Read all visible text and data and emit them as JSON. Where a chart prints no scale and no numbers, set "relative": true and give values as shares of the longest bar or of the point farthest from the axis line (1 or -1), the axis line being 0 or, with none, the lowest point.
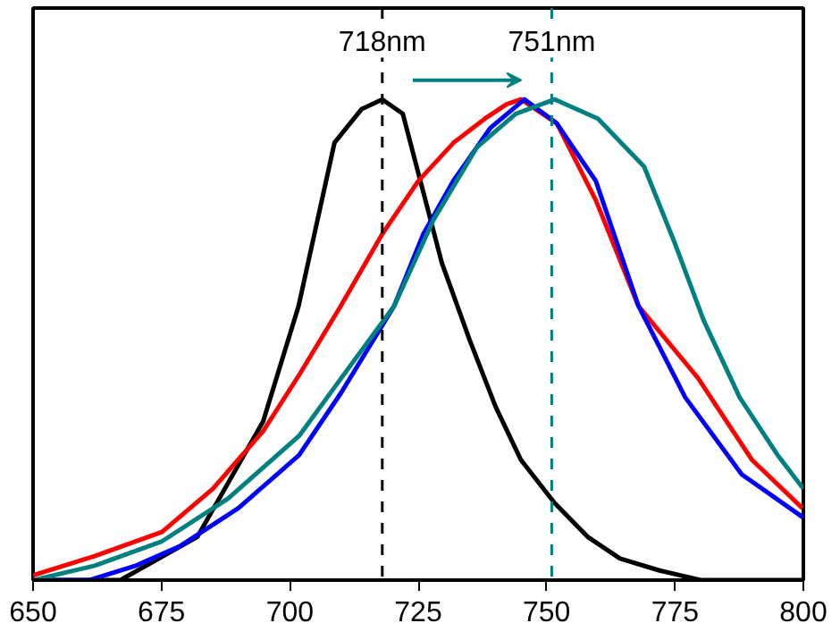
{
  "chart_data": {
    "type": "line",
    "relative": true,
    "xlim": [
      650,
      800
    ],
    "xticks": [
      650,
      675,
      700,
      725,
      750,
      775,
      800
    ],
    "grid": false,
    "marker": "none",
    "line_style": "solid",
    "series": [
      {
        "color": "#000000",
        "x": [
          650,
          667,
          682,
          694.8,
          701.7,
          708.7,
          714,
          718,
          722,
          729.6,
          735,
          740.1,
          745,
          751.6,
          758,
          764.3,
          772,
          780,
          790,
          800
        ],
        "values": [
          0,
          0,
          0.09,
          0.33,
          0.57,
          0.91,
          0.98,
          1.0,
          0.97,
          0.66,
          0.5,
          0.36,
          0.25,
          0.16,
          0.09,
          0.045,
          0.02,
          0,
          0,
          0
        ]
      },
      {
        "color": "#ff0000",
        "x": [
          650,
          662,
          675.1,
          685,
          694.8,
          702,
          709.9,
          718,
          725,
          731.9,
          738,
          742.2,
          745,
          752,
          759.6,
          767.9,
          779.5,
          790,
          799.8
        ],
        "values": [
          0.01,
          0.05,
          0.1,
          0.19,
          0.31,
          0.43,
          0.57,
          0.72,
          0.83,
          0.91,
          0.96,
          0.99,
          1.0,
          0.95,
          0.79,
          0.57,
          0.42,
          0.25,
          0.15
        ]
      },
      {
        "color": "#0000ff",
        "x": [
          650,
          661,
          670,
          678.5,
          690,
          701.8,
          710,
          720.3,
          726,
          731.8,
          739,
          745.7,
          752,
          759.6,
          767.9,
          777,
          788,
          800
        ],
        "values": [
          0,
          0,
          0.03,
          0.07,
          0.15,
          0.26,
          0.39,
          0.57,
          0.72,
          0.83,
          0.94,
          1.0,
          0.95,
          0.83,
          0.57,
          0.38,
          0.22,
          0.13
        ]
      },
      {
        "color": "#008080",
        "x": [
          650,
          662,
          675,
          688,
          701.8,
          710,
          720.3,
          728,
          736.4,
          744,
          751.6,
          760,
          769,
          775,
          780.6,
          787.6,
          795,
          800
        ],
        "values": [
          0,
          0.03,
          0.08,
          0.17,
          0.3,
          0.42,
          0.57,
          0.75,
          0.9,
          0.97,
          1.0,
          0.96,
          0.86,
          0.7,
          0.54,
          0.38,
          0.26,
          0.19
        ]
      }
    ],
    "ref_lines": [
      {
        "axis": "x",
        "value": 718,
        "label": "718nm",
        "color": "#000000",
        "line_style": "dashed"
      },
      {
        "axis": "x",
        "value": 751,
        "label": "751nm",
        "color": "#008080",
        "line_style": "dashed"
      }
    ]
  }
}
